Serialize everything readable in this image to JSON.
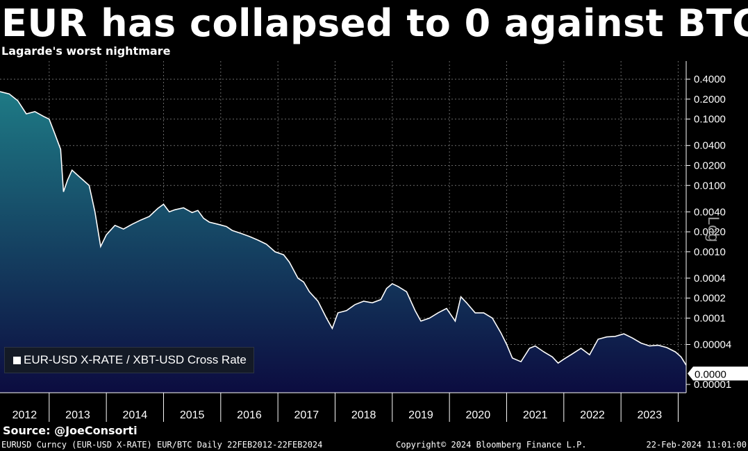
{
  "header": {
    "title": "EUR has collapsed to 0 against BTC",
    "subtitle": "Lagarde's worst nightmare"
  },
  "legend": {
    "label": "EUR-USD X-RATE / XBT-USD Cross Rate"
  },
  "source": "Source: @JoeConsorti",
  "footer": {
    "left": "EURUSD Curncy (EUR-USD X-RATE) EUR/BTC  Daily 22FEB2012-22FEB2024",
    "middle": "Copyright© 2024 Bloomberg Finance L.P.",
    "right": "22-Feb-2024 11:01:00"
  },
  "axis_scale_label": "Log",
  "chart_data": {
    "type": "area",
    "scale": "log",
    "line_color": "#ffffff",
    "fill_top_color": "#1e7a85",
    "fill_bottom_color": "#0c0c40",
    "last_value_label": "0.0000",
    "x_ticks": [
      "2012",
      "2013",
      "2014",
      "2015",
      "2016",
      "2017",
      "2018",
      "2019",
      "2020",
      "2021",
      "2022",
      "2023"
    ],
    "y_ticks": [
      {
        "value": 0.4,
        "label": "0.4000"
      },
      {
        "value": 0.2,
        "label": "0.2000"
      },
      {
        "value": 0.1,
        "label": "0.1000"
      },
      {
        "value": 0.04,
        "label": "0.0400"
      },
      {
        "value": 0.02,
        "label": "0.0200"
      },
      {
        "value": 0.01,
        "label": "0.0100"
      },
      {
        "value": 0.004,
        "label": "0.0040"
      },
      {
        "value": 0.002,
        "label": "0.0020"
      },
      {
        "value": 0.001,
        "label": "0.0010"
      },
      {
        "value": 0.0004,
        "label": "0.0004"
      },
      {
        "value": 0.0002,
        "label": "0.0002"
      },
      {
        "value": 0.0001,
        "label": "0.0001"
      },
      {
        "value": 4e-05,
        "label": "0.00004"
      },
      {
        "value": 1e-05,
        "label": "0.00001"
      }
    ],
    "xlim": [
      2012.14,
      2024.14
    ],
    "ylim": [
      7.5e-06,
      0.75
    ],
    "series": [
      {
        "values": [
          [
            2012.14,
            0.26
          ],
          [
            2012.3,
            0.24
          ],
          [
            2012.45,
            0.19
          ],
          [
            2012.6,
            0.12
          ],
          [
            2012.75,
            0.13
          ],
          [
            2012.9,
            0.11
          ],
          [
            2013.0,
            0.1
          ],
          [
            2013.1,
            0.06
          ],
          [
            2013.2,
            0.035
          ],
          [
            2013.25,
            0.008
          ],
          [
            2013.32,
            0.012
          ],
          [
            2013.4,
            0.017
          ],
          [
            2013.55,
            0.013
          ],
          [
            2013.7,
            0.01
          ],
          [
            2013.8,
            0.004
          ],
          [
            2013.9,
            0.0012
          ],
          [
            2014.0,
            0.0018
          ],
          [
            2014.15,
            0.0025
          ],
          [
            2014.3,
            0.0022
          ],
          [
            2014.45,
            0.0026
          ],
          [
            2014.6,
            0.003
          ],
          [
            2014.75,
            0.0034
          ],
          [
            2014.9,
            0.0045
          ],
          [
            2015.0,
            0.0052
          ],
          [
            2015.1,
            0.004
          ],
          [
            2015.2,
            0.0043
          ],
          [
            2015.35,
            0.0046
          ],
          [
            2015.5,
            0.0039
          ],
          [
            2015.6,
            0.0042
          ],
          [
            2015.7,
            0.0032
          ],
          [
            2015.8,
            0.0028
          ],
          [
            2015.95,
            0.0026
          ],
          [
            2016.1,
            0.0024
          ],
          [
            2016.2,
            0.0021
          ],
          [
            2016.35,
            0.0019
          ],
          [
            2016.5,
            0.0017
          ],
          [
            2016.65,
            0.0015
          ],
          [
            2016.8,
            0.0013
          ],
          [
            2016.95,
            0.001
          ],
          [
            2017.1,
            0.0009
          ],
          [
            2017.2,
            0.0007
          ],
          [
            2017.35,
            0.0004
          ],
          [
            2017.45,
            0.00035
          ],
          [
            2017.55,
            0.00025
          ],
          [
            2017.7,
            0.00018
          ],
          [
            2017.85,
            0.0001
          ],
          [
            2017.95,
            7e-05
          ],
          [
            2018.05,
            0.00012
          ],
          [
            2018.2,
            0.00013
          ],
          [
            2018.35,
            0.00016
          ],
          [
            2018.5,
            0.00018
          ],
          [
            2018.65,
            0.00017
          ],
          [
            2018.8,
            0.00019
          ],
          [
            2018.9,
            0.00028
          ],
          [
            2019.0,
            0.00033
          ],
          [
            2019.1,
            0.0003
          ],
          [
            2019.25,
            0.00025
          ],
          [
            2019.4,
            0.00013
          ],
          [
            2019.5,
            9e-05
          ],
          [
            2019.65,
            0.0001
          ],
          [
            2019.8,
            0.00012
          ],
          [
            2019.95,
            0.00014
          ],
          [
            2020.1,
            9e-05
          ],
          [
            2020.2,
            0.00021
          ],
          [
            2020.3,
            0.00017
          ],
          [
            2020.45,
            0.00012
          ],
          [
            2020.6,
            0.00012
          ],
          [
            2020.75,
            0.0001
          ],
          [
            2020.9,
            6e-05
          ],
          [
            2021.0,
            4e-05
          ],
          [
            2021.1,
            2.5e-05
          ],
          [
            2021.25,
            2.2e-05
          ],
          [
            2021.4,
            3.5e-05
          ],
          [
            2021.5,
            3.8e-05
          ],
          [
            2021.65,
            3.1e-05
          ],
          [
            2021.8,
            2.6e-05
          ],
          [
            2021.9,
            2.1e-05
          ],
          [
            2022.0,
            2.4e-05
          ],
          [
            2022.15,
            2.9e-05
          ],
          [
            2022.3,
            3.5e-05
          ],
          [
            2022.45,
            2.8e-05
          ],
          [
            2022.6,
            4.8e-05
          ],
          [
            2022.75,
            5.2e-05
          ],
          [
            2022.9,
            5.3e-05
          ],
          [
            2023.05,
            5.8e-05
          ],
          [
            2023.2,
            5e-05
          ],
          [
            2023.35,
            4.2e-05
          ],
          [
            2023.5,
            3.8e-05
          ],
          [
            2023.65,
            3.9e-05
          ],
          [
            2023.8,
            3.6e-05
          ],
          [
            2023.95,
            3.1e-05
          ],
          [
            2024.05,
            2.6e-05
          ],
          [
            2024.14,
            1.95e-05
          ]
        ]
      }
    ]
  }
}
